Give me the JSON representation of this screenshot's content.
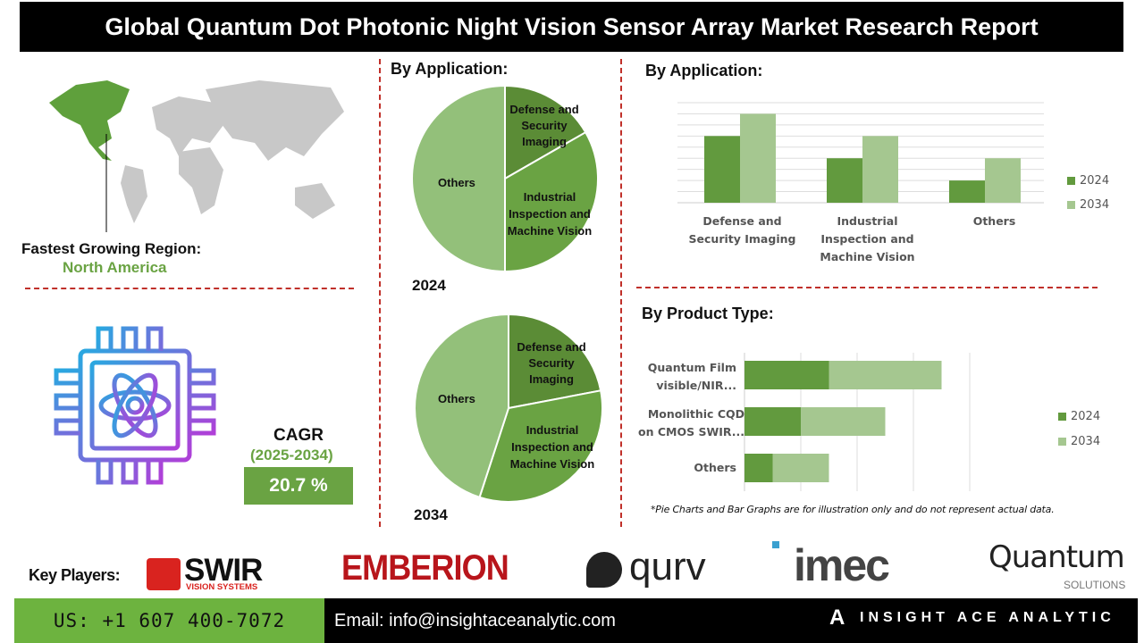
{
  "title": "Global Quantum Dot Photonic Night Vision Sensor Array Market Research Report",
  "region": {
    "label": "Fastest Growing Region:",
    "value": "North America"
  },
  "cagr": {
    "label": "CAGR",
    "period": "(2025-2034)",
    "value": "20.7 %"
  },
  "colors": {
    "accent": "#6aa343",
    "dark_green": "#5b8c36",
    "light_green": "#a5c790",
    "divider": "#c0302a"
  },
  "chart_data": [
    {
      "type": "pie",
      "title": "By Application:",
      "year_label": "2024",
      "categories": [
        "Defense and Security Imaging",
        "Industrial Inspection and Machine Vision",
        "Others"
      ],
      "values": [
        16.7,
        33.3,
        50
      ]
    },
    {
      "type": "pie",
      "year_label": "2034",
      "categories": [
        "Defense and Security Imaging",
        "Industrial Inspection and Machine Vision",
        "Others"
      ],
      "values": [
        22,
        33,
        45
      ]
    },
    {
      "type": "bar",
      "title": "By Application:",
      "categories": [
        "Defense and Security Imaging",
        "Industrial Inspection and Machine Vision",
        "Others"
      ],
      "series": [
        {
          "name": "2024",
          "values": [
            6,
            4,
            2
          ]
        },
        {
          "name": "2034",
          "values": [
            8,
            6,
            4
          ]
        }
      ],
      "ylim": [
        0,
        9
      ],
      "grid": true,
      "legend": "right"
    },
    {
      "type": "bar",
      "orientation": "horizontal",
      "stacked": true,
      "title": "By Product Type:",
      "categories": [
        "Quantum Film visible/NIR...",
        "Monolithic CQD on CMOS SWIR...",
        "Others"
      ],
      "series": [
        {
          "name": "2024",
          "values": [
            1.5,
            1,
            0.5
          ]
        },
        {
          "name": "2034",
          "values": [
            2,
            1.5,
            1
          ]
        }
      ],
      "xlim": [
        0,
        4
      ],
      "grid": true,
      "legend": "right"
    }
  ],
  "note": "*Pie Charts and Bar Graphs are for illustration only and do not represent actual data.",
  "key_players": {
    "label": "Key Players:",
    "logos": [
      "SWIR",
      "VISION SYSTEMS",
      "EMBERION",
      "qurv",
      "imec",
      "Quantum",
      "SOLUTIONS"
    ]
  },
  "footer": {
    "phone": "US: +1 607 400-7072",
    "email": "Email: info@insightaceanalytic.com",
    "brand": "INSIGHT ACE ANALYTIC"
  }
}
